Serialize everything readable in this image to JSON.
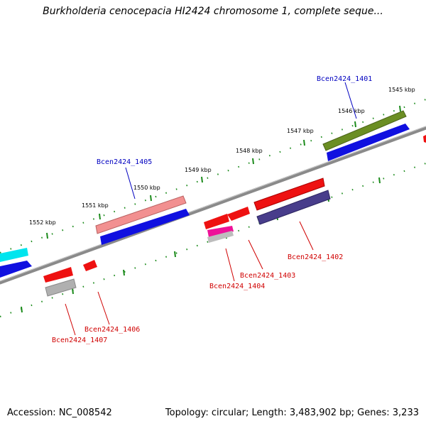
{
  "title": "Burkholderia cenocepacia HI2424 chromosome 1, complete seque...",
  "footer": {
    "accession": "Accession: NC_008542",
    "stats": "Topology: circular; Length: 3,483,902 bp; Genes: 3,233"
  },
  "kbp_labels": [
    "1545 kbp",
    "1546 kbp",
    "1547 kbp",
    "1548 kbp",
    "1549 kbp",
    "1550 kbp",
    "1551 kbp",
    "1552 kbp"
  ],
  "genes": {
    "g1401": "Bcen2424_1401",
    "g1402": "Bcen2424_1402",
    "g1403": "Bcen2424_1403",
    "g1404": "Bcen2424_1404",
    "g1405": "Bcen2424_1405",
    "g1406": "Bcen2424_1406",
    "g1407": "Bcen2424_1407"
  },
  "colors": {
    "forward_label": "#0000c0",
    "reverse_label": "#d00000",
    "backbone": "#808080",
    "tick": "#1a8a1a"
  }
}
